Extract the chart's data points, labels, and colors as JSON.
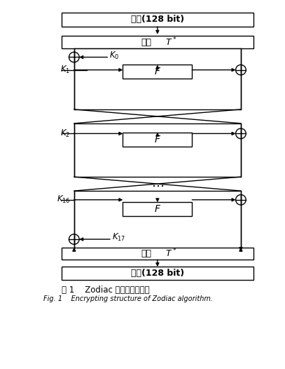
{
  "title_cn": "明文(128 bit)",
  "cipher_cn": "密文(128 bit)",
  "perm_cn": "置换",
  "perm_label": "T*",
  "F_label": "F",
  "fig_caption_cn": "图 1    Zodiac 算法的加密结构",
  "fig_caption_en": "Fig. 1    Encrypting structure of Zodiac algorithm.",
  "bg_color": "#ffffff",
  "box_color": "#000000",
  "text_color": "#000000",
  "figsize": [
    4.07,
    5.26
  ],
  "dpi": 100,
  "xlim": [
    0,
    10
  ],
  "ylim": [
    0,
    14.2
  ],
  "lw": 1.0
}
